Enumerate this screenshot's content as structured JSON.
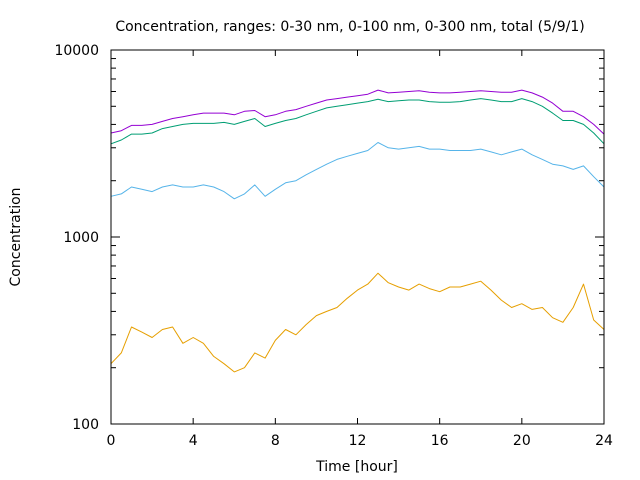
{
  "chart_data": {
    "type": "line",
    "title": "Concentration, ranges: 0-30 nm, 0-100 nm, 0-300 nm, total (5/9/1)",
    "xlabel": "Time [hour]",
    "ylabel": "Concentration",
    "xlim": [
      0,
      24
    ],
    "ylim": [
      100,
      10000
    ],
    "yscale": "log",
    "grid": false,
    "legend": "none",
    "x_ticks": [
      "0",
      "4",
      "8",
      "12",
      "16",
      "20",
      "24"
    ],
    "y_ticks": [
      "100",
      "1000",
      "10000"
    ],
    "x": [
      0,
      0.5,
      1,
      1.5,
      2,
      2.5,
      3,
      3.5,
      4,
      4.5,
      5,
      5.5,
      6,
      6.5,
      7,
      7.5,
      8,
      8.5,
      9,
      9.5,
      10,
      10.5,
      11,
      11.5,
      12,
      12.5,
      13,
      13.5,
      14,
      14.5,
      15,
      15.5,
      16,
      16.5,
      17,
      17.5,
      18,
      18.5,
      19,
      19.5,
      20,
      20.5,
      21,
      21.5,
      22,
      22.5,
      23,
      23.5,
      24
    ],
    "series": [
      {
        "color": "#e69f00",
        "values": [
          210,
          240,
          330,
          310,
          290,
          320,
          330,
          270,
          290,
          270,
          230,
          210,
          190,
          200,
          240,
          225,
          280,
          320,
          300,
          340,
          380,
          400,
          420,
          470,
          520,
          560,
          640,
          570,
          540,
          520,
          560,
          530,
          510,
          540,
          540,
          560,
          580,
          520,
          460,
          420,
          440,
          410,
          420,
          370,
          350,
          420,
          560,
          360,
          320
        ]
      },
      {
        "color": "#56b4e9",
        "values": [
          1650,
          1700,
          1850,
          1800,
          1750,
          1850,
          1900,
          1850,
          1850,
          1900,
          1850,
          1750,
          1600,
          1700,
          1900,
          1650,
          1800,
          1950,
          2000,
          2150,
          2300,
          2450,
          2600,
          2700,
          2800,
          2900,
          3200,
          3000,
          2950,
          3000,
          3050,
          2950,
          2950,
          2900,
          2900,
          2900,
          2950,
          2850,
          2750,
          2850,
          2950,
          2750,
          2600,
          2450,
          2400,
          2300,
          2400,
          2100,
          1850
        ]
      },
      {
        "color": "#009e73",
        "values": [
          3150,
          3300,
          3550,
          3550,
          3600,
          3800,
          3900,
          4000,
          4050,
          4050,
          4050,
          4100,
          4000,
          4150,
          4300,
          3900,
          4050,
          4200,
          4300,
          4500,
          4700,
          4900,
          5000,
          5100,
          5200,
          5300,
          5450,
          5300,
          5350,
          5400,
          5400,
          5300,
          5250,
          5250,
          5300,
          5400,
          5500,
          5400,
          5300,
          5300,
          5500,
          5300,
          5000,
          4600,
          4200,
          4200,
          4000,
          3600,
          3150
        ]
      },
      {
        "color": "#9400d3",
        "values": [
          3600,
          3700,
          3950,
          3950,
          4000,
          4150,
          4300,
          4400,
          4500,
          4600,
          4600,
          4600,
          4500,
          4700,
          4750,
          4400,
          4500,
          4700,
          4800,
          5000,
          5200,
          5400,
          5500,
          5600,
          5700,
          5800,
          6100,
          5900,
          5950,
          6000,
          6050,
          5950,
          5900,
          5900,
          5950,
          6000,
          6050,
          6000,
          5950,
          5950,
          6100,
          5900,
          5600,
          5200,
          4700,
          4700,
          4400,
          4000,
          3550
        ]
      }
    ]
  }
}
